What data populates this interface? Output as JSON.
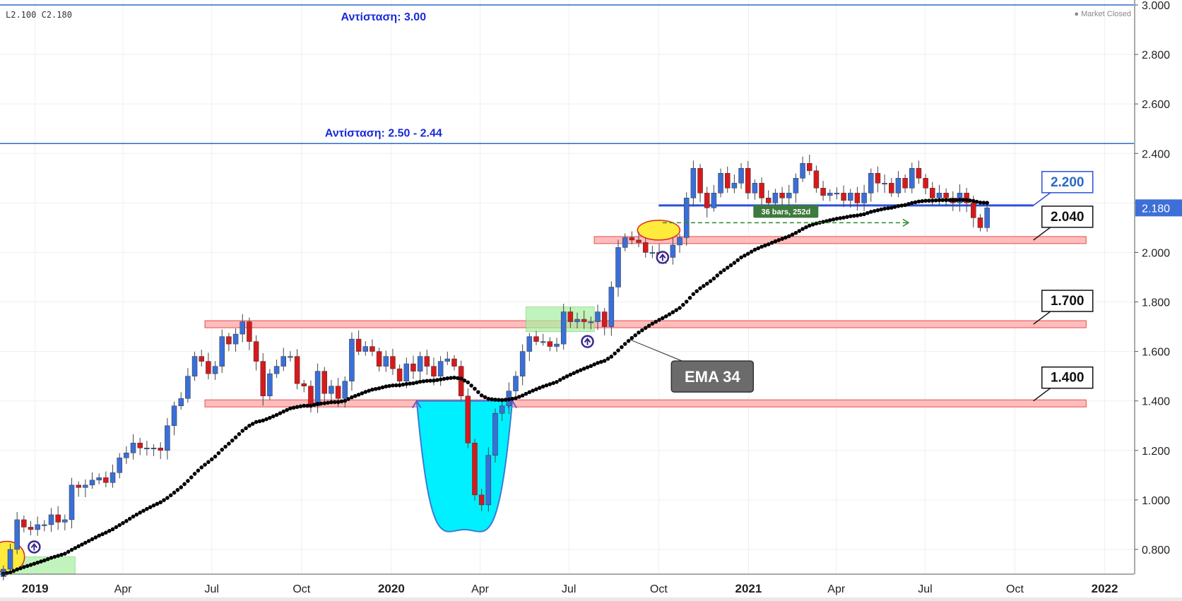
{
  "header": {
    "ohlc_low": "L2.100",
    "ohlc_close": "C2.180",
    "market_status": "Market Closed"
  },
  "colors": {
    "up_candle": "#3a6fd8",
    "down_candle": "#d7191c",
    "ema": "#000000",
    "resistance_line": "#2a6ac8",
    "support_fill": "#ffbcbc",
    "support_stroke": "#e25050",
    "cup_fill": "#00f0ff",
    "highlight_ellipse": "#ffeb3b",
    "green_box": "#a8f0a0",
    "price_label_bg": "#3d6fd6"
  },
  "chart_data": {
    "type": "candlestick",
    "timeframe": "weekly",
    "ylim": [
      0.7,
      3.02
    ],
    "y_ticks": [
      0.8,
      1.0,
      1.2,
      1.4,
      1.6,
      1.8,
      2.0,
      2.2,
      2.4,
      2.6,
      2.8,
      3.0
    ],
    "y_tick_labels": [
      "0.800",
      "1.000",
      "1.200",
      "1.400",
      "1.600",
      "1.800",
      "2.000",
      "2.200",
      "2.400",
      "2.600",
      "2.800",
      "3.000"
    ],
    "x_start": "2018-11-26",
    "x_end": "2022-01-31",
    "x_ticks": [
      {
        "date": "2019-01-01",
        "label": "2019",
        "bold": true
      },
      {
        "date": "2019-04-01",
        "label": "Apr",
        "bold": false
      },
      {
        "date": "2019-07-01",
        "label": "Jul",
        "bold": false
      },
      {
        "date": "2019-10-01",
        "label": "Oct",
        "bold": false
      },
      {
        "date": "2020-01-01",
        "label": "2020",
        "bold": true
      },
      {
        "date": "2020-04-01",
        "label": "Apr",
        "bold": false
      },
      {
        "date": "2020-07-01",
        "label": "Jul",
        "bold": false
      },
      {
        "date": "2020-10-01",
        "label": "Oct",
        "bold": false
      },
      {
        "date": "2021-01-01",
        "label": "2021",
        "bold": true
      },
      {
        "date": "2021-04-01",
        "label": "Apr",
        "bold": false
      },
      {
        "date": "2021-07-01",
        "label": "Jul",
        "bold": false
      },
      {
        "date": "2021-10-01",
        "label": "Oct",
        "bold": false
      },
      {
        "date": "2022-01-01",
        "label": "2022",
        "bold": true
      }
    ],
    "closes": [
      0.72,
      0.8,
      0.92,
      0.89,
      0.88,
      0.9,
      0.9,
      0.94,
      0.91,
      0.92,
      1.06,
      1.05,
      1.06,
      1.08,
      1.09,
      1.07,
      1.11,
      1.17,
      1.19,
      1.23,
      1.21,
      1.21,
      1.21,
      1.2,
      1.3,
      1.38,
      1.41,
      1.5,
      1.58,
      1.56,
      1.51,
      1.54,
      1.66,
      1.63,
      1.67,
      1.72,
      1.64,
      1.56,
      1.42,
      1.51,
      1.54,
      1.58,
      1.58,
      1.47,
      1.46,
      1.38,
      1.52,
      1.43,
      1.46,
      1.41,
      1.48,
      1.65,
      1.6,
      1.62,
      1.6,
      1.54,
      1.58,
      1.53,
      1.48,
      1.55,
      1.52,
      1.58,
      1.54,
      1.5,
      1.56,
      1.57,
      1.54,
      1.42,
      1.23,
      1.02,
      0.98,
      1.18,
      1.35,
      1.38,
      1.44,
      1.5,
      1.6,
      1.66,
      1.64,
      1.64,
      1.62,
      1.63,
      1.76,
      1.72,
      1.73,
      1.72,
      1.72,
      1.76,
      1.7,
      1.86,
      2.02,
      2.06,
      2.05,
      2.04,
      2.0,
      2.0,
      1.98,
      1.98,
      2.03,
      2.06,
      2.22,
      2.34,
      2.24,
      2.18,
      2.24,
      2.32,
      2.26,
      2.28,
      2.34,
      2.24,
      2.28,
      2.22,
      2.2,
      2.24,
      2.22,
      2.24,
      2.3,
      2.36,
      2.33,
      2.26,
      2.23,
      2.24,
      2.24,
      2.21,
      2.24,
      2.2,
      2.24,
      2.32,
      2.28,
      2.28,
      2.24,
      2.3,
      2.26,
      2.34,
      2.3,
      2.26,
      2.22,
      2.24,
      2.22,
      2.2,
      2.24,
      2.2,
      2.14,
      2.1,
      2.18
    ],
    "ema": {
      "name": "EMA 34",
      "period": 34
    },
    "horizontal_lines": [
      {
        "price": 3.0,
        "label": "Αντίσταση: 3.00"
      },
      {
        "price": 2.44,
        "label": "Αντίσταση: 2.50 - 2.44"
      },
      {
        "price": 2.19,
        "label": ""
      }
    ],
    "zones": [
      {
        "label": "1.400",
        "price": 1.39,
        "from": "2019-06-24",
        "to": "2021-12-13"
      },
      {
        "label": "1.700",
        "price": 1.71,
        "from": "2019-06-24",
        "to": "2021-12-13"
      },
      {
        "label": "2.040",
        "price": 2.05,
        "from": "2020-07-27",
        "to": "2021-12-13"
      }
    ],
    "callouts": [
      {
        "label": "2.200",
        "price": 2.19,
        "date": "2021-10-20",
        "style": "blue"
      },
      {
        "label": "2.040",
        "price": 2.05,
        "date": "2021-10-20",
        "style": "black"
      },
      {
        "label": "1.700",
        "price": 1.71,
        "date": "2021-10-20",
        "style": "black"
      },
      {
        "label": "1.400",
        "price": 1.4,
        "date": "2021-10-20",
        "style": "black"
      }
    ],
    "annotations": {
      "ema_label": "EMA  34",
      "range_label": "36 bars, 252d",
      "range": {
        "from": "2020-10-05",
        "to": "2021-06-14",
        "price": 2.12
      },
      "arrows": [
        {
          "date": "2018-12-31",
          "price": 0.81
        },
        {
          "date": "2020-07-20",
          "price": 1.64
        },
        {
          "date": "2020-10-05",
          "price": 1.98
        }
      ]
    },
    "last_price": "2.180",
    "legend": "none",
    "grid": true
  }
}
